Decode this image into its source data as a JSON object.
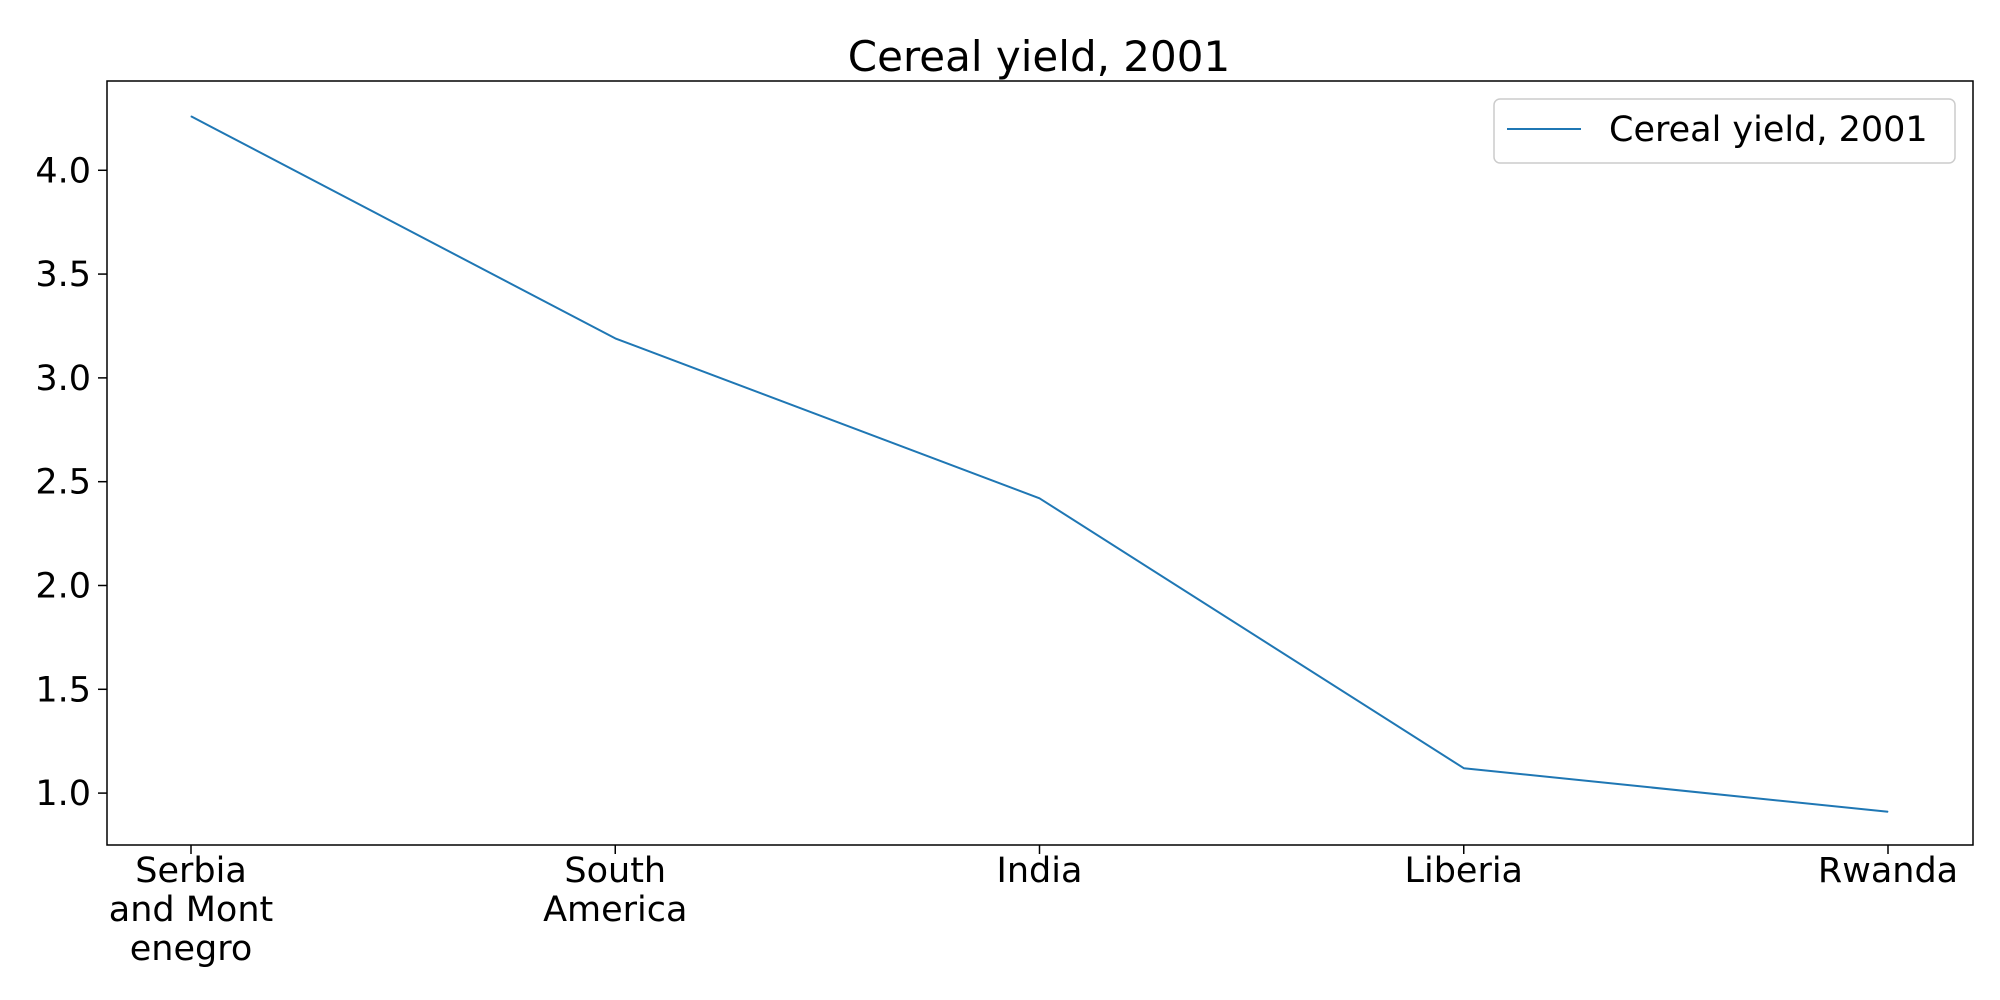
{
  "chart_data": {
    "type": "line",
    "title": "Cereal yield, 2001",
    "xlabel": "",
    "ylabel": "",
    "categories": [
      "Serbia\nand Mont\nenegro",
      "South\nAmerica",
      "India",
      "Liberia",
      "Rwanda"
    ],
    "series": [
      {
        "name": "Cereal yield, 2001",
        "values": [
          4.26,
          3.19,
          2.42,
          1.12,
          0.91
        ],
        "color": "#1f77b4"
      }
    ],
    "ylim": [
      0.75,
      4.43
    ],
    "yticks": [
      1.0,
      1.5,
      2.0,
      2.5,
      3.0,
      3.5,
      4.0
    ],
    "ytick_labels": [
      "1.0",
      "1.5",
      "2.0",
      "2.5",
      "3.0",
      "3.5",
      "4.0"
    ],
    "grid": false,
    "legend": "top-right"
  }
}
